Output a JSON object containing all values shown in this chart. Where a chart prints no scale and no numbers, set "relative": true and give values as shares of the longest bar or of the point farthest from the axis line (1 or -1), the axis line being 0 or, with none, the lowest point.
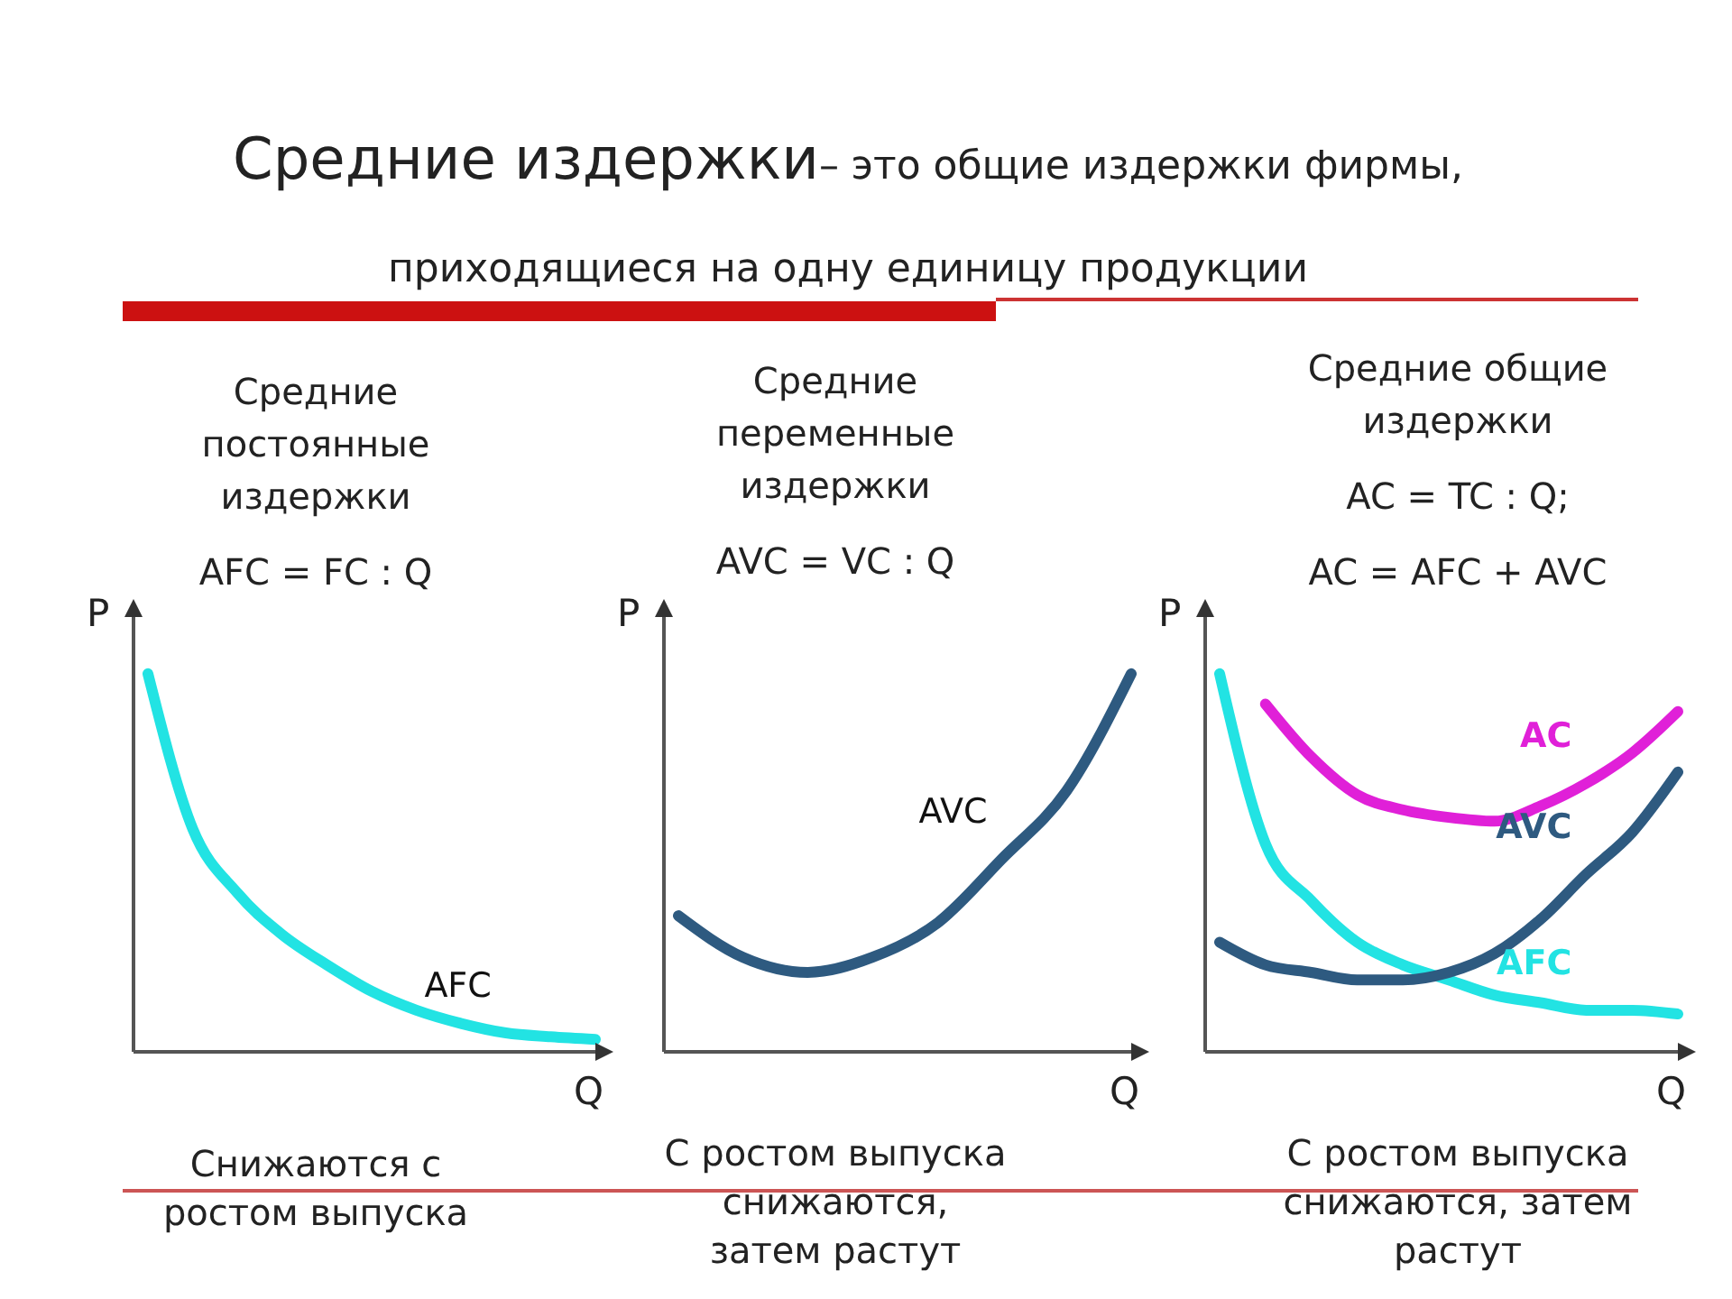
{
  "chart_data": [
    {
      "type": "other",
      "title": "Средние издержки",
      "subtitle": "– это общие издержки фирмы, приходящиеся на одну единицу продукции"
    },
    {
      "type": "line",
      "title": "Средние\nпостоянные\nиздержки",
      "subtitle": "AFC = FC : Q",
      "xlabel": "Q",
      "ylabel": "P",
      "relative": true,
      "marker": "none",
      "categories": [
        null,
        null,
        null,
        null,
        null,
        null,
        null,
        null,
        null,
        null,
        null
      ],
      "series": [
        {
          "name": "AFC",
          "color": "#22e3e3",
          "values": [
            1,
            0.59,
            0.42,
            0.31,
            0.23,
            0.16,
            0.11,
            0.075,
            0.05,
            0.04,
            0.033
          ]
        }
      ],
      "annotations": [
        "Снижаются с\nростом выпуска"
      ]
    },
    {
      "type": "line",
      "title": "Средние\nпеременные\nиздержки",
      "subtitle": "AVC = VC : Q",
      "xlabel": "Q",
      "ylabel": "P",
      "relative": true,
      "marker": "none",
      "categories": [
        null,
        null,
        null,
        null,
        null,
        null,
        null,
        null
      ],
      "series": [
        {
          "name": "AVC",
          "color": "#2e5a80",
          "values": [
            0.36,
            0.25,
            0.21,
            0.25,
            0.34,
            0.51,
            0.69,
            1
          ]
        }
      ],
      "annotations": [
        "С ростом выпуска\nснижаются,\nзатем растут"
      ]
    },
    {
      "type": "line",
      "title": "Средние  общие\nиздержки",
      "subtitle": "AC = TC : Q;\nAC = AFC + AVC",
      "xlabel": "Q",
      "ylabel": "P",
      "relative": true,
      "marker": "none",
      "categories": [
        null,
        null,
        null,
        null,
        null,
        null,
        null,
        null,
        null,
        null,
        null
      ],
      "series": [
        {
          "name": "AFC",
          "color": "#22e3e3",
          "values": [
            1,
            0.55,
            0.4,
            0.29,
            0.23,
            0.19,
            0.15,
            0.13,
            0.11,
            0.11,
            0.1
          ]
        },
        {
          "name": "AVC",
          "color": "#2e5a80",
          "values": [
            0.29,
            0.23,
            0.21,
            0.19,
            0.19,
            0.21,
            0.26,
            0.35,
            0.47,
            0.58,
            0.74
          ]
        },
        {
          "name": "AC",
          "color": "#e020d8",
          "values": [
            null,
            0.92,
            0.78,
            0.68,
            0.64,
            0.62,
            0.61,
            0.65,
            0.71,
            0.79,
            0.9
          ]
        }
      ],
      "annotations": [
        "С ростом выпуска\nснижаются, затем\nрастут"
      ]
    }
  ]
}
